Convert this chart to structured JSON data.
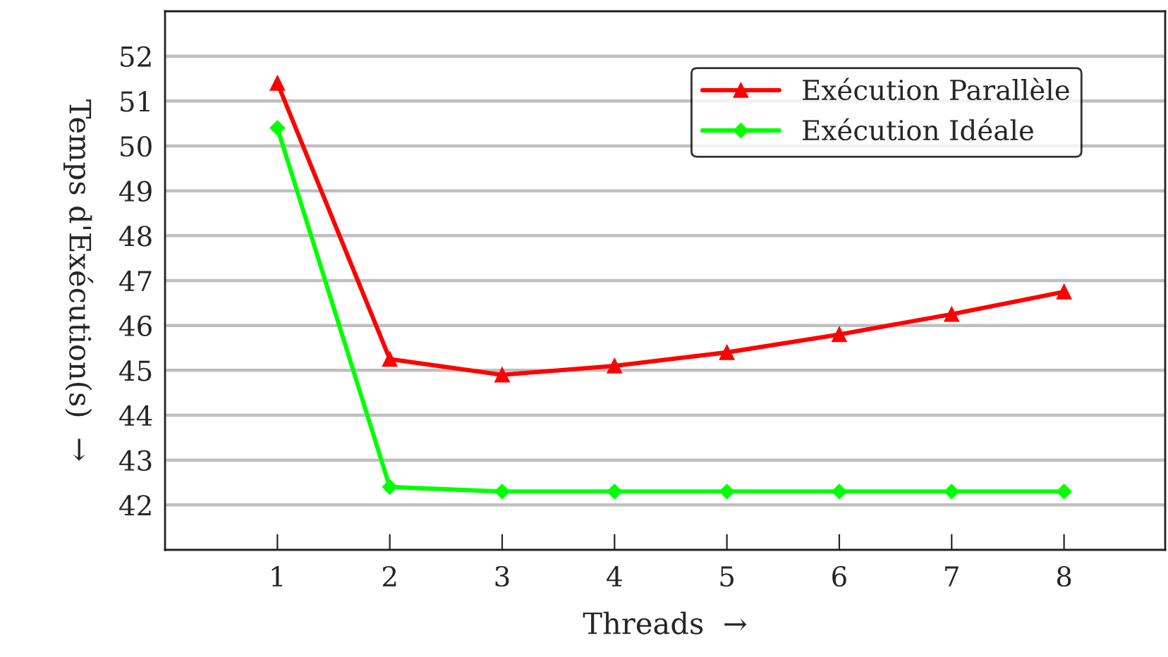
{
  "chart_data": {
    "type": "line",
    "xlabel": "Threads  →",
    "ylabel": "Temps d'Exécution(s)  →",
    "x": [
      1,
      2,
      3,
      4,
      5,
      6,
      7,
      8
    ],
    "series": [
      {
        "name": "Exécution Parallèle",
        "color": "#ff0000",
        "marker": "triangle",
        "values": [
          51.4,
          45.25,
          44.9,
          45.1,
          45.4,
          45.8,
          46.25,
          46.75
        ]
      },
      {
        "name": "Exécution Idéale",
        "color": "#00ff00",
        "marker": "diamond",
        "values": [
          50.4,
          42.4,
          42.3,
          42.3,
          42.3,
          42.3,
          42.3,
          42.3
        ]
      }
    ],
    "xlim": [
      0,
      8.9
    ],
    "ylim": [
      41,
      53
    ],
    "xticks": [
      1,
      2,
      3,
      4,
      5,
      6,
      7,
      8
    ],
    "yticks": [
      42,
      43,
      44,
      45,
      46,
      47,
      48,
      49,
      50,
      51,
      52
    ],
    "grid": "y",
    "legend": "top right",
    "line_style": "solid"
  }
}
